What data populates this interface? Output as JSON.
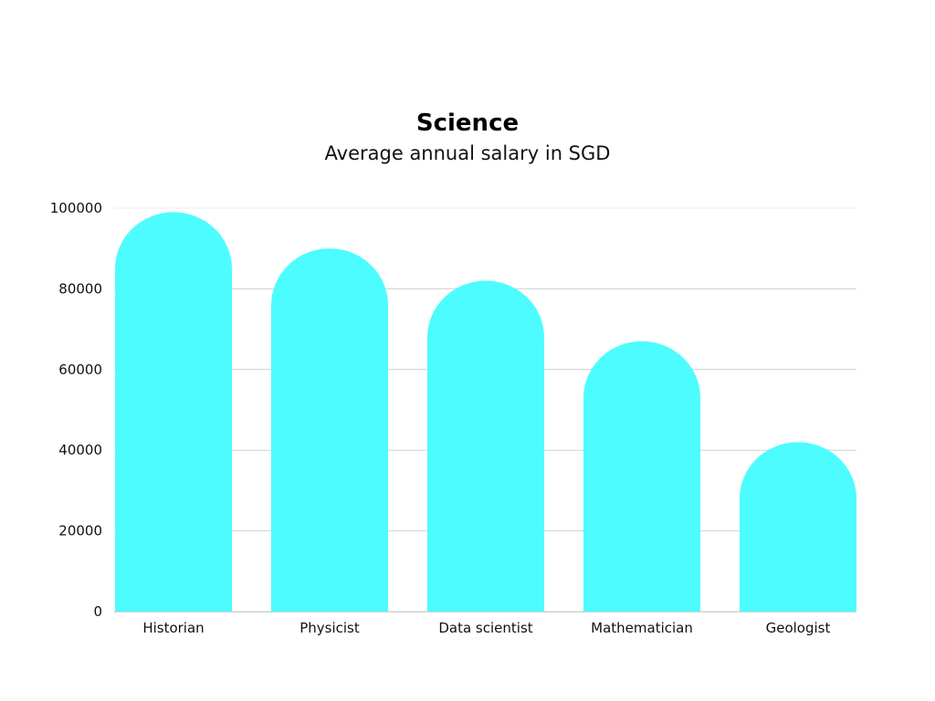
{
  "chart_data": {
    "type": "bar",
    "title": "Science",
    "subtitle": "Average annual salary in SGD",
    "categories": [
      "Historian",
      "Physicist",
      "Data scientist",
      "Mathematician",
      "Geologist"
    ],
    "values": [
      99000,
      90000,
      82000,
      67000,
      42000
    ],
    "ylim": [
      0,
      100000
    ],
    "yticks": [
      0,
      20000,
      40000,
      60000,
      80000,
      100000
    ],
    "xlabel": "",
    "ylabel": "",
    "grid": true,
    "bar_style": "rounded-top",
    "colors": {
      "bar": "#4dfcfe",
      "grid": "#d0d0d0",
      "text": "#111111"
    }
  }
}
